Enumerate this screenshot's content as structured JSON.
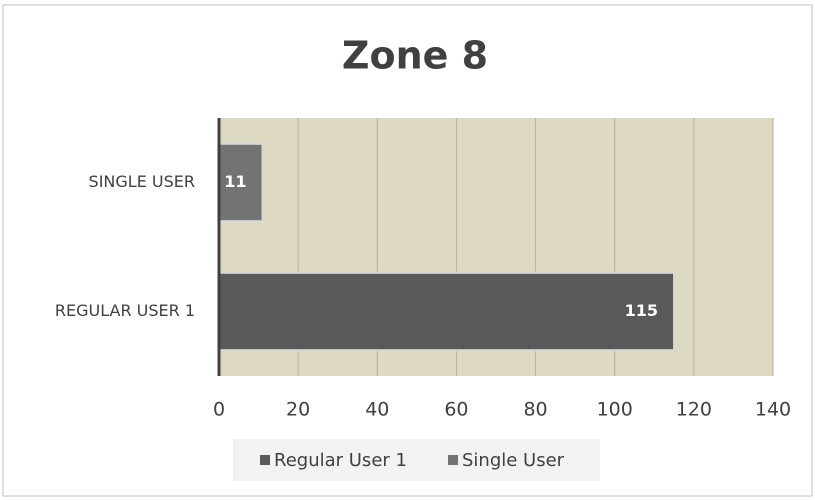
{
  "chart_data": {
    "type": "bar",
    "orientation": "horizontal",
    "title": "Zone 8",
    "categories": [
      "REGULAR USER 1",
      "SINGLE USER"
    ],
    "series": [
      {
        "name": "Regular User 1",
        "color": "#595959",
        "values": [
          115,
          null
        ]
      },
      {
        "name": "Single User",
        "color": "#737373",
        "values": [
          null,
          11
        ]
      }
    ],
    "xlim": [
      0,
      140
    ],
    "xticks": [
      0,
      20,
      40,
      60,
      80,
      100,
      120,
      140
    ],
    "grid": true,
    "legend": "bottom",
    "plot_background": "#ddd9c3"
  }
}
